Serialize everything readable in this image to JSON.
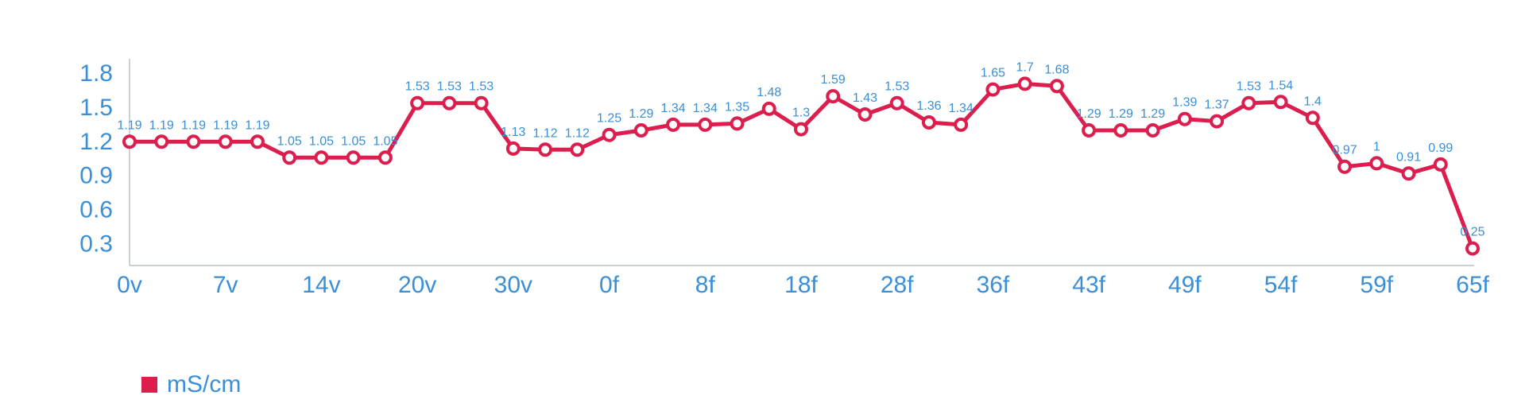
{
  "chart_data": {
    "type": "line",
    "x_tick_labels": [
      "0v",
      "7v",
      "14v",
      "20v",
      "30v",
      "0f",
      "8f",
      "18f",
      "28f",
      "36f",
      "43f",
      "49f",
      "54f",
      "59f",
      "65f"
    ],
    "y_ticks": [
      0.3,
      0.6,
      0.9,
      1.2,
      1.5,
      1.8
    ],
    "ylim": [
      0.1,
      1.85
    ],
    "series": [
      {
        "name": "mS/cm",
        "color": "#dc1e4e",
        "values": [
          1.19,
          1.19,
          1.19,
          1.19,
          1.19,
          1.05,
          1.05,
          1.05,
          1.05,
          1.53,
          1.53,
          1.53,
          1.13,
          1.12,
          1.12,
          1.25,
          1.29,
          1.34,
          1.34,
          1.35,
          1.48,
          1.3,
          1.59,
          1.43,
          1.53,
          1.36,
          1.34,
          1.65,
          1.7,
          1.68,
          1.29,
          1.29,
          1.29,
          1.39,
          1.37,
          1.53,
          1.54,
          1.4,
          0.97,
          1,
          0.91,
          0.99,
          0.25
        ]
      }
    ]
  }
}
